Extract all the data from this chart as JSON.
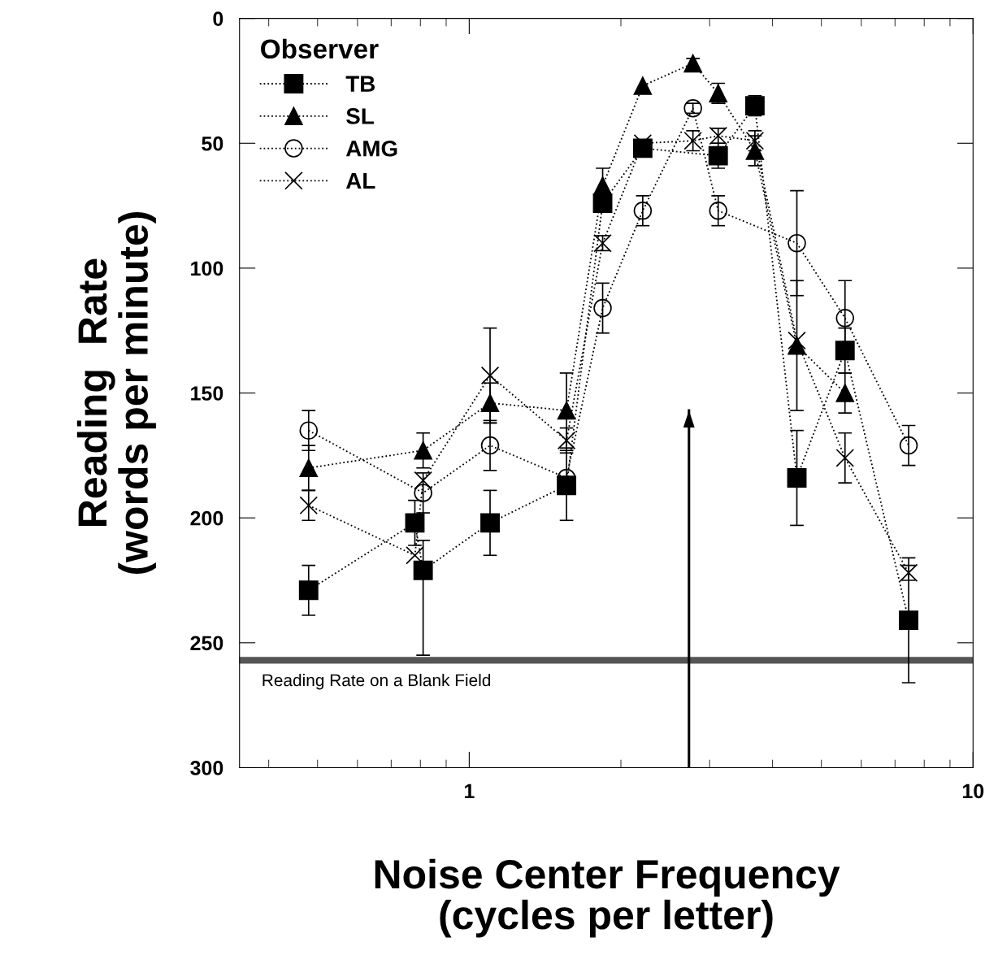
{
  "chart_data": {
    "type": "line",
    "xlabel": "Noise Center Frequency\n(cycles per letter)",
    "ylabel": "Reading  Rate\n(words per minute)",
    "legend_title": "Observer",
    "log": "x",
    "xlim": [
      0.35,
      10
    ],
    "xticks": [
      1,
      10
    ],
    "ylim": [
      300,
      0
    ],
    "yticks": [
      0,
      50,
      100,
      150,
      200,
      250,
      300
    ],
    "legend": "top left",
    "line_style": "dotted",
    "grid": false,
    "series": [
      {
        "name": "TB",
        "color": "#000000",
        "marker": "square",
        "x": [
          0.48,
          0.78,
          0.81,
          1.1,
          1.56,
          1.84,
          2.21,
          3.12,
          3.69,
          4.47,
          5.57,
          7.45
        ],
        "values": [
          229,
          202,
          221,
          202,
          187,
          74,
          52,
          55,
          35,
          184,
          133,
          241
        ],
        "errors": [
          10,
          9,
          [
            209,
            255
          ],
          13,
          [
            173,
            201
          ],
          null,
          3,
          5,
          4,
          19,
          9,
          25
        ]
      },
      {
        "name": "SL",
        "color": "#000000",
        "marker": "triangle",
        "x": [
          0.48,
          0.81,
          1.1,
          1.56,
          1.84,
          2.21,
          2.78,
          3.12,
          3.69,
          4.47,
          5.57
        ],
        "values": [
          180,
          173,
          154,
          157,
          67,
          27,
          18,
          30,
          53,
          131,
          150
        ],
        "errors": [
          9,
          7,
          8,
          15,
          7,
          null,
          2,
          4,
          6,
          26,
          8
        ]
      },
      {
        "name": "AMG",
        "color": "#000000",
        "marker": "circle",
        "x": [
          0.48,
          0.81,
          1.1,
          1.56,
          1.84,
          2.21,
          2.78,
          3.12,
          4.47,
          5.57,
          7.45
        ],
        "values": [
          165,
          190,
          171,
          184,
          116,
          77,
          36,
          77,
          90,
          120,
          171
        ],
        "errors": [
          8,
          8,
          10,
          null,
          10,
          6,
          2,
          6,
          21,
          15,
          8
        ]
      },
      {
        "name": "AL",
        "color": "#000000",
        "marker": "cross",
        "x": [
          0.48,
          0.78,
          0.81,
          1.1,
          1.56,
          1.84,
          2.21,
          2.78,
          3.12,
          3.69,
          4.47,
          5.57,
          7.45
        ],
        "values": [
          195,
          215,
          185,
          143,
          169,
          90,
          50,
          49,
          47,
          49,
          129,
          176,
          222
        ],
        "errors": [
          6,
          null,
          null,
          19,
          5,
          3,
          null,
          4,
          3,
          4,
          null,
          10,
          3
        ]
      },
      {
        "color": "#000000",
        "marker": "none",
        "line_style": "solid",
        "x": [
          2.73,
          2.73
        ],
        "values": [
          300,
          157
        ]
      }
    ],
    "ref_lines": [
      {
        "axis": "y",
        "value": 257,
        "label": "Reading Rate on a Blank Field",
        "color": "#555555"
      }
    ]
  }
}
